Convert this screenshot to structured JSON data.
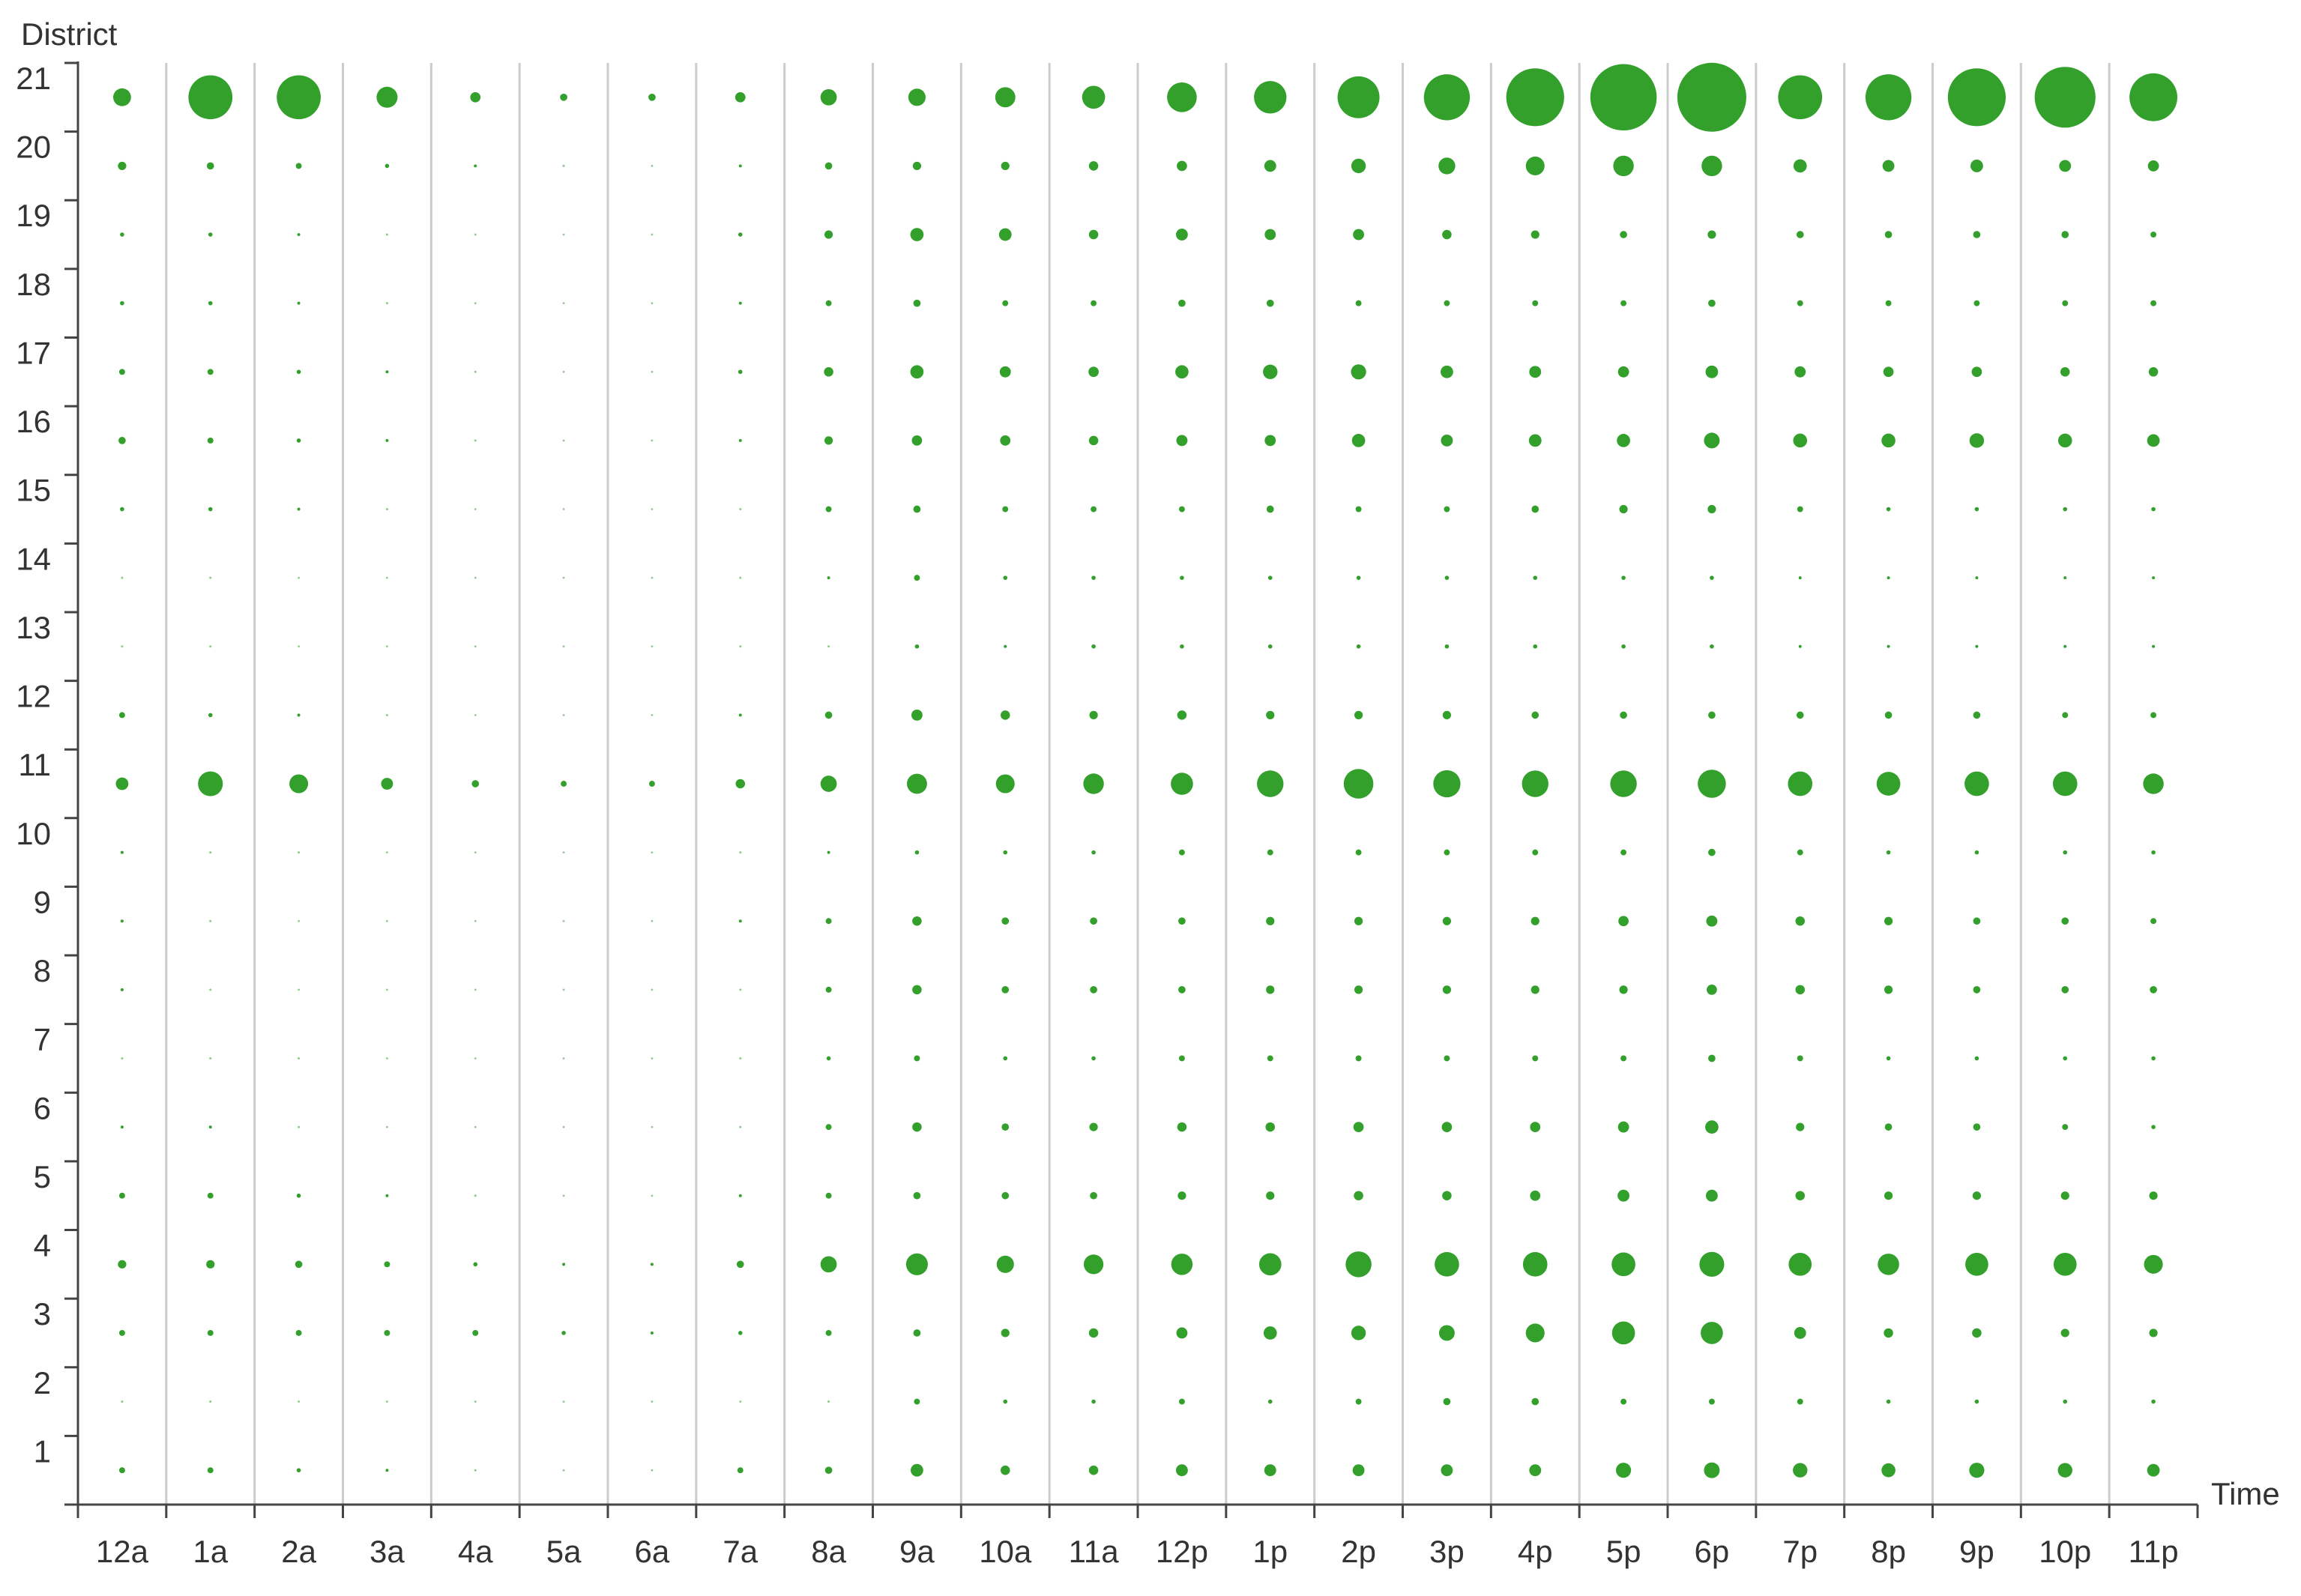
{
  "chart_data": {
    "type": "scatter",
    "subtype": "bubble-grid",
    "xlabel": "Time",
    "ylabel": "District",
    "x_categories": [
      "12a",
      "1a",
      "2a",
      "3a",
      "4a",
      "5a",
      "6a",
      "7a",
      "8a",
      "9a",
      "10a",
      "11a",
      "12p",
      "1p",
      "2p",
      "3p",
      "4p",
      "5p",
      "6p",
      "7p",
      "8p",
      "9p",
      "10p",
      "11p"
    ],
    "y_categories": [
      "1",
      "2",
      "3",
      "4",
      "5",
      "6",
      "7",
      "8",
      "9",
      "10",
      "11",
      "12",
      "13",
      "14",
      "15",
      "16",
      "17",
      "18",
      "19",
      "20",
      "21"
    ],
    "color": "#33a02c",
    "grid": "vertical separators between time columns",
    "size_unit": "relative bubble area (0–100)",
    "values": [
      [
        2,
        0.3,
        2,
        4,
        2,
        0.5,
        0.3,
        0.5,
        0.5,
        0.5,
        9,
        2,
        0.3,
        0.3,
        1,
        3,
        2,
        1,
        1,
        4,
        18
      ],
      [
        2,
        0.3,
        2,
        4,
        2,
        0.5,
        0.3,
        0.3,
        0.3,
        0.3,
        35,
        1,
        0.3,
        0.3,
        1,
        2,
        2,
        1,
        1,
        3,
        110
      ],
      [
        1,
        0.2,
        2,
        3,
        1,
        0.3,
        0.3,
        0.2,
        0.2,
        0.3,
        20,
        0.5,
        0.2,
        0.2,
        0.5,
        1,
        1,
        0.5,
        0.5,
        2,
        110
      ],
      [
        0.5,
        0.2,
        2,
        2,
        0.5,
        0.2,
        0.1,
        0.1,
        0.2,
        0.2,
        8,
        0.3,
        0.2,
        0.1,
        0.3,
        0.5,
        0.5,
        0.3,
        0.3,
        1,
        25
      ],
      [
        0.3,
        0.1,
        2,
        1,
        0.3,
        0.1,
        0.1,
        0.1,
        0.1,
        0.1,
        3,
        0.2,
        0.1,
        0.1,
        0.2,
        0.3,
        0.3,
        0.2,
        0.2,
        0.5,
        6
      ],
      [
        0.2,
        0.1,
        1,
        0.5,
        0.2,
        0.1,
        0.1,
        0.1,
        0.1,
        0.1,
        2,
        0.1,
        0.1,
        0.1,
        0.1,
        0.2,
        0.2,
        0.1,
        0.1,
        0.3,
        3
      ],
      [
        0.2,
        0.1,
        0.5,
        0.5,
        0.1,
        0.1,
        0.1,
        0.1,
        0.1,
        0.1,
        2,
        0.1,
        0.1,
        0.1,
        0.1,
        0.2,
        0.2,
        0.1,
        0.1,
        0.2,
        3
      ],
      [
        2,
        0.1,
        1,
        3,
        0.5,
        0.3,
        0.3,
        0.3,
        0.5,
        0.3,
        5,
        0.5,
        0.3,
        0.3,
        0.3,
        0.5,
        1,
        0.5,
        1,
        0.5,
        6
      ],
      [
        3,
        0.3,
        2,
        15,
        2,
        2,
        1,
        2,
        2,
        0.5,
        15,
        3,
        0.3,
        0.5,
        2,
        4,
        5,
        2,
        4,
        3,
        15
      ],
      [
        9,
        2,
        3,
        27,
        3,
        5,
        2,
        5,
        5,
        1,
        23,
        7,
        1,
        2,
        3,
        6,
        10,
        3,
        10,
        4,
        17
      ],
      [
        5,
        1,
        4,
        17,
        3,
        3,
        1,
        3,
        3,
        1,
        20,
        5,
        0.5,
        1,
        2,
        6,
        7,
        2,
        9,
        4,
        23
      ],
      [
        5,
        1,
        5,
        22,
        3,
        4,
        1,
        3,
        3,
        1,
        24,
        4,
        1,
        1,
        2,
        5,
        6,
        2,
        5,
        5,
        30
      ],
      [
        8,
        2,
        7,
        26,
        4,
        5,
        2,
        3,
        3,
        2,
        28,
        5,
        1,
        1,
        2,
        7,
        10,
        3,
        8,
        6,
        50
      ],
      [
        8,
        1,
        10,
        28,
        4,
        5,
        2,
        4,
        4,
        2,
        40,
        4,
        1,
        1,
        3,
        7,
        12,
        3,
        7,
        8,
        60
      ],
      [
        8,
        2,
        12,
        38,
        5,
        6,
        2,
        4,
        4,
        2,
        50,
        4,
        1,
        1,
        2,
        10,
        13,
        2,
        7,
        12,
        100
      ],
      [
        8,
        3,
        14,
        34,
        5,
        6,
        2,
        4,
        4,
        2,
        42,
        4,
        1,
        1,
        2,
        8,
        9,
        2,
        5,
        16,
        120
      ],
      [
        8,
        3,
        20,
        34,
        6,
        6,
        2,
        4,
        4,
        2,
        40,
        3,
        1,
        1,
        3,
        9,
        8,
        2,
        4,
        20,
        190
      ],
      [
        13,
        2,
        30,
        32,
        8,
        7,
        2,
        4,
        6,
        2,
        40,
        3,
        1,
        1,
        4,
        10,
        7,
        2,
        3,
        24,
        250
      ],
      [
        14,
        2,
        28,
        35,
        8,
        10,
        3,
        6,
        7,
        3,
        45,
        3,
        1,
        1,
        4,
        14,
        9,
        3,
        4,
        24,
        270
      ],
      [
        12,
        2,
        8,
        30,
        5,
        4,
        2,
        5,
        5,
        2,
        34,
        3,
        0.5,
        0.5,
        2,
        11,
        7,
        2,
        3,
        10,
        110
      ],
      [
        11,
        1,
        5,
        26,
        4,
        3,
        1,
        4,
        4,
        1,
        32,
        3,
        0.5,
        0.5,
        1,
        11,
        6,
        2,
        3,
        8,
        120
      ],
      [
        13,
        1,
        5,
        30,
        4,
        3,
        1,
        3,
        3,
        1,
        34,
        3,
        0.5,
        0.5,
        1,
        12,
        6,
        2,
        3,
        9,
        190
      ],
      [
        12,
        1,
        4,
        30,
        4,
        2,
        1,
        3,
        3,
        1,
        34,
        2,
        0.5,
        0.5,
        1,
        11,
        5,
        2,
        3,
        8,
        210
      ],
      [
        9,
        1,
        4,
        20,
        4,
        1,
        1,
        3,
        2,
        1,
        24,
        2,
        0.5,
        0.5,
        1,
        9,
        5,
        2,
        2,
        7,
        130
      ]
    ]
  }
}
